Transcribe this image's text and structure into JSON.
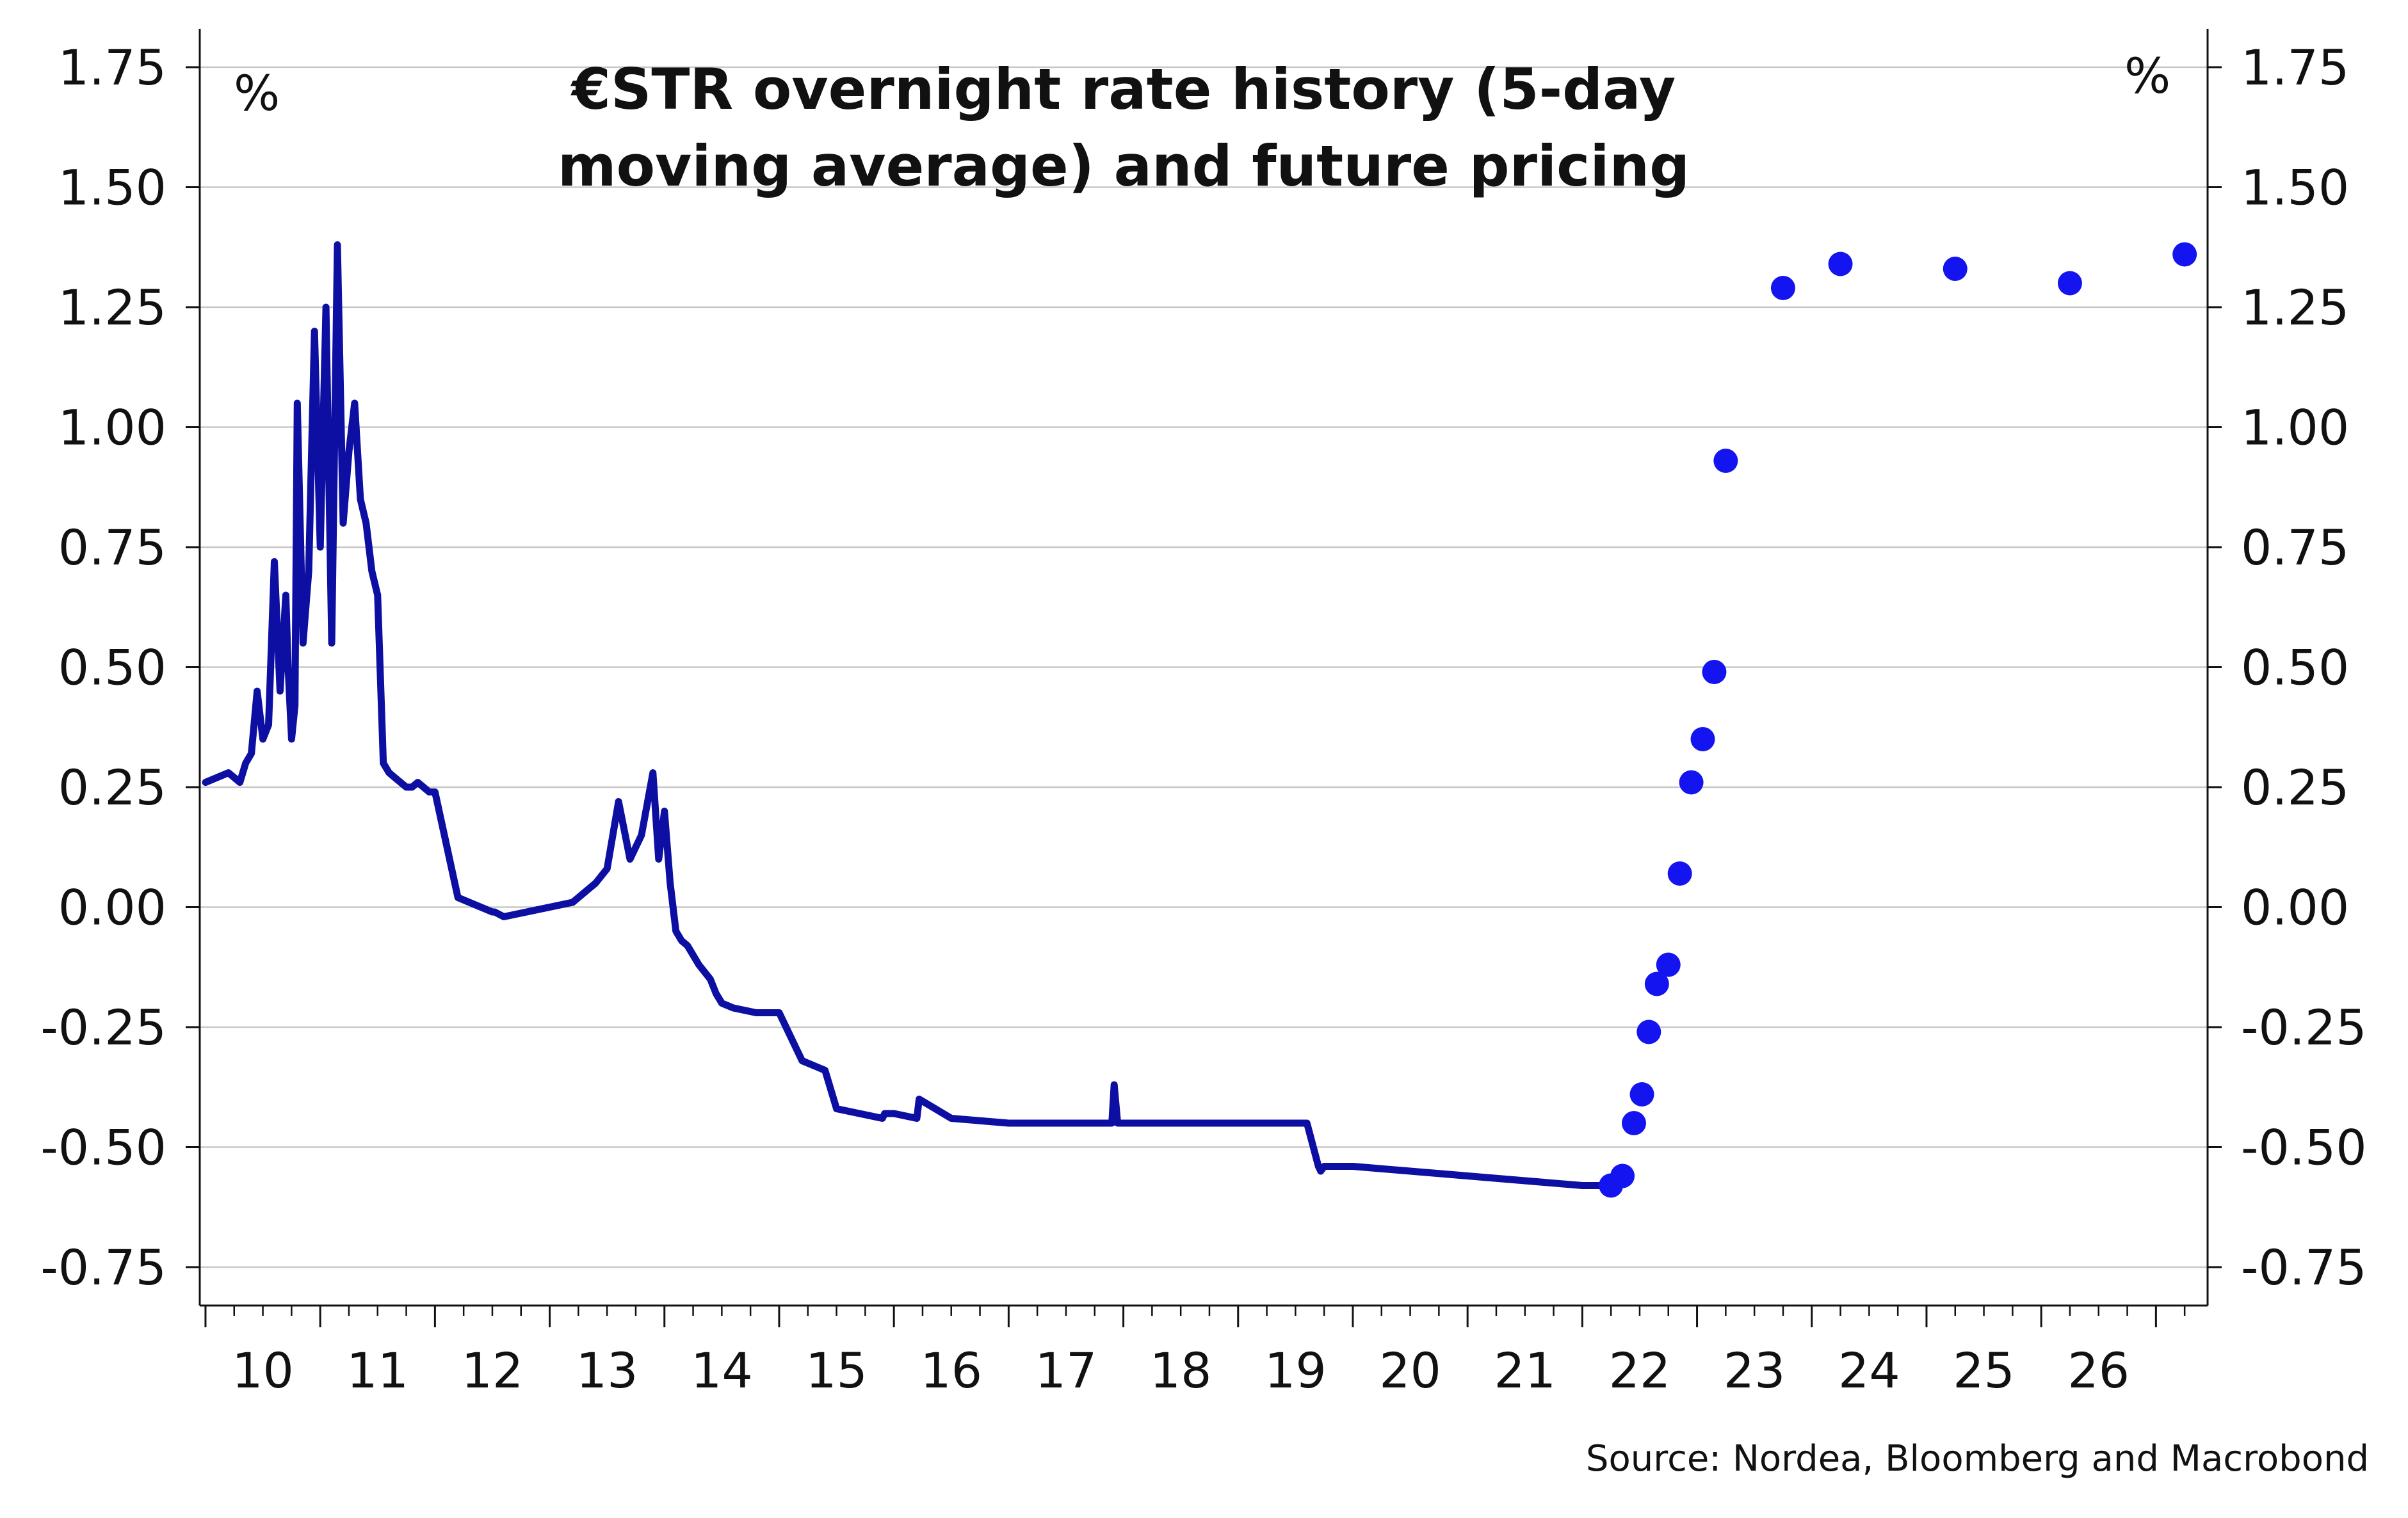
{
  "chart_data": {
    "type": "line",
    "title_lines": [
      "€STR overnight rate history (5-day",
      "moving average) and future pricing"
    ],
    "ylabel_left": "%",
    "ylabel_right": "%",
    "source": "Source: Nordea, Bloomberg and Macrobond",
    "ylim": [
      -0.83,
      1.83
    ],
    "xlim": [
      2009.95,
      2027.45
    ],
    "yticks": [
      1.75,
      1.5,
      1.25,
      1.0,
      0.75,
      0.5,
      0.25,
      0.0,
      -0.25,
      -0.5,
      -0.75
    ],
    "ytick_labels": [
      "1.75",
      "1.50",
      "1.25",
      "1.00",
      "0.75",
      "0.50",
      "0.25",
      "0.00",
      "-0.25",
      "-0.50",
      "-0.75"
    ],
    "year_labels": [
      "10",
      "11",
      "12",
      "13",
      "14",
      "15",
      "16",
      "17",
      "18",
      "19",
      "20",
      "21",
      "22",
      "23",
      "24",
      "25",
      "26"
    ],
    "grid": true,
    "colors": {
      "history": "#0d0fa3",
      "futures": "#1414f0",
      "grid": "#c8c8c8",
      "axis": "#111111"
    },
    "series": [
      {
        "type": "line",
        "x": [
          2010.0,
          2010.1,
          2010.2,
          2010.3,
          2010.35,
          2010.4,
          2010.45,
          2010.5,
          2010.55,
          2010.6,
          2010.65,
          2010.7,
          2010.72,
          2010.75,
          2010.78,
          2010.8,
          2010.85,
          2010.9,
          2010.95,
          2011.0,
          2011.05,
          2011.1,
          2011.15,
          2011.2,
          2011.25,
          2011.3,
          2011.35,
          2011.4,
          2011.45,
          2011.5,
          2011.55,
          2011.6,
          2011.65,
          2011.7,
          2011.75,
          2011.8,
          2011.85,
          2011.9,
          2011.95,
          2012.0,
          2012.2,
          2012.4,
          2012.5,
          2012.52,
          2012.6,
          2012.8,
          2013.0,
          2013.2,
          2013.4,
          2013.5,
          2013.6,
          2013.7,
          2013.8,
          2013.9,
          2013.95,
          2014.0,
          2014.05,
          2014.1,
          2014.15,
          2014.2,
          2014.25,
          2014.3,
          2014.4,
          2014.45,
          2014.5,
          2014.6,
          2014.8,
          2015.0,
          2015.2,
          2015.4,
          2015.5,
          2015.9,
          2015.92,
          2016.0,
          2016.2,
          2016.22,
          2016.5,
          2017.0,
          2017.5,
          2017.9,
          2017.92,
          2017.95,
          2018.0,
          2018.5,
          2019.0,
          2019.6,
          2019.7,
          2019.72,
          2019.75,
          2020.0,
          2020.5,
          2021.0,
          2021.5,
          2022.0,
          2022.2
        ],
        "y": [
          0.26,
          0.27,
          0.28,
          0.26,
          0.3,
          0.32,
          0.45,
          0.35,
          0.38,
          0.72,
          0.45,
          0.65,
          0.5,
          0.35,
          0.42,
          1.05,
          0.55,
          0.7,
          1.2,
          0.75,
          1.25,
          0.55,
          1.38,
          0.8,
          0.95,
          1.05,
          0.85,
          0.8,
          0.7,
          0.65,
          0.3,
          0.28,
          0.27,
          0.26,
          0.25,
          0.25,
          0.26,
          0.25,
          0.24,
          0.24,
          0.02,
          0.0,
          -0.01,
          -0.01,
          -0.02,
          -0.01,
          0.0,
          0.01,
          0.05,
          0.08,
          0.22,
          0.1,
          0.15,
          0.28,
          0.1,
          0.2,
          0.05,
          -0.05,
          -0.07,
          -0.08,
          -0.1,
          -0.12,
          -0.15,
          -0.18,
          -0.2,
          -0.21,
          -0.22,
          -0.22,
          -0.32,
          -0.34,
          -0.42,
          -0.44,
          -0.43,
          -0.43,
          -0.44,
          -0.4,
          -0.44,
          -0.45,
          -0.45,
          -0.45,
          -0.37,
          -0.45,
          -0.45,
          -0.45,
          -0.45,
          -0.45,
          -0.54,
          -0.55,
          -0.54,
          -0.54,
          -0.55,
          -0.56,
          -0.57,
          -0.58,
          -0.58
        ]
      },
      {
        "type": "scatter",
        "x": [
          2022.25,
          2022.35,
          2022.45,
          2022.52,
          2022.58,
          2022.65,
          2022.75,
          2022.85,
          2022.95,
          2023.05,
          2023.15,
          2023.25,
          2023.75,
          2024.25,
          2025.25,
          2026.25,
          2027.25
        ],
        "y": [
          -0.58,
          -0.56,
          -0.45,
          -0.39,
          -0.26,
          -0.16,
          -0.12,
          0.07,
          0.26,
          0.35,
          0.49,
          0.93,
          1.29,
          1.34,
          1.33,
          1.3,
          1.36
        ]
      }
    ]
  }
}
